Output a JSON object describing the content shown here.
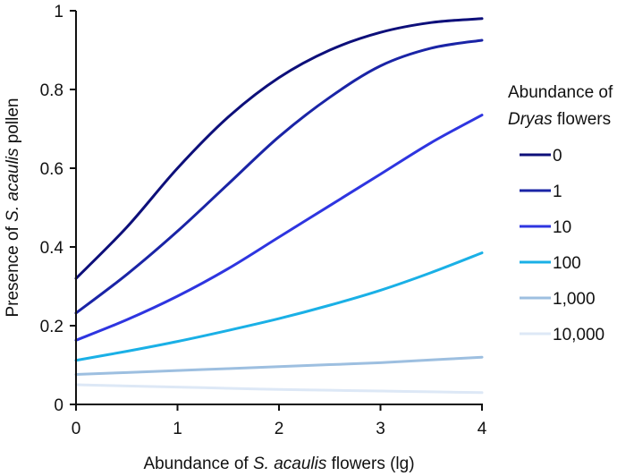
{
  "chart_data": {
    "type": "line",
    "xlabel": {
      "pre": "Abundance of ",
      "ital": "S. acaulis",
      "post": " flowers (lg)"
    },
    "ylabel": {
      "pre": "Presence of ",
      "ital": "S. acaulis",
      "post": " pollen"
    },
    "xlim": [
      0,
      4
    ],
    "ylim": [
      0,
      1
    ],
    "xticks": [
      "0",
      "1",
      "2",
      "3",
      "4"
    ],
    "yticks": [
      "0",
      "0.2",
      "0.4",
      "0.6",
      "0.8",
      "1"
    ],
    "grid": false,
    "legend": {
      "placement": "right",
      "title_line1": "Abundance of",
      "title_line2_ital": "Dryas",
      "title_line2_post": " flowers"
    },
    "x": [
      0,
      0.5,
      1,
      1.5,
      2,
      2.5,
      3,
      3.5,
      4
    ],
    "series": [
      {
        "name": "0",
        "color": "#0d0f7a",
        "values": [
          0.32,
          0.45,
          0.6,
          0.73,
          0.83,
          0.9,
          0.945,
          0.97,
          0.98
        ]
      },
      {
        "name": "1",
        "color": "#1a24a6",
        "values": [
          0.232,
          0.33,
          0.44,
          0.56,
          0.68,
          0.78,
          0.86,
          0.905,
          0.925
        ]
      },
      {
        "name": "10",
        "color": "#2e35e0",
        "values": [
          0.163,
          0.215,
          0.275,
          0.345,
          0.425,
          0.505,
          0.585,
          0.665,
          0.735
        ]
      },
      {
        "name": "100",
        "color": "#1ab0e6",
        "values": [
          0.112,
          0.135,
          0.16,
          0.188,
          0.218,
          0.252,
          0.29,
          0.335,
          0.385
        ]
      },
      {
        "name": "1,000",
        "color": "#9dbfe0",
        "values": [
          0.076,
          0.081,
          0.086,
          0.091,
          0.096,
          0.101,
          0.106,
          0.113,
          0.12
        ]
      },
      {
        "name": "10,000",
        "color": "#dde8f6",
        "values": [
          0.05,
          0.047,
          0.044,
          0.041,
          0.038,
          0.036,
          0.034,
          0.032,
          0.03
        ]
      }
    ]
  }
}
